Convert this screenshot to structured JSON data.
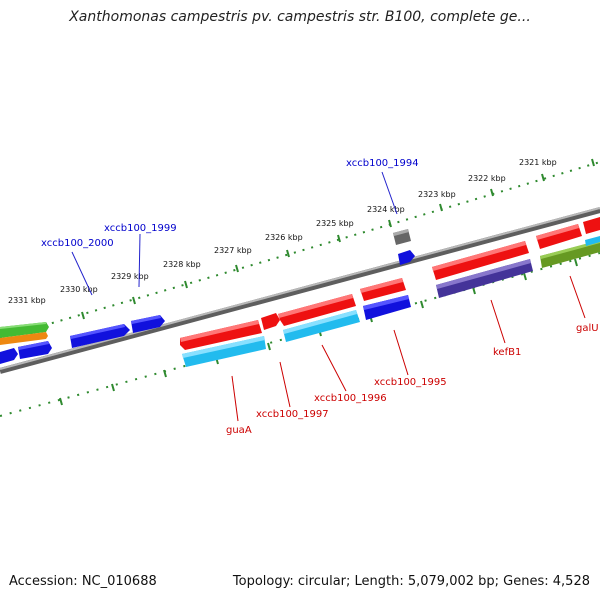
{
  "title": "Xanthomonas campestris pv. campestris str. B100, complete ge...",
  "footer": {
    "accession": "Accession: NC_010688",
    "summary": "Topology: circular; Length: 5,079,002 bp; Genes: 4,528"
  },
  "scale_labels": [
    "2331 kbp",
    "2330 kbp",
    "2329 kbp",
    "2328 kbp",
    "2327 kbp",
    "2326 kbp",
    "2325 kbp",
    "2324 kbp",
    "2323 kbp",
    "2322 kbp",
    "2321 kbp"
  ],
  "gene_labels": {
    "xccb100_2000": "xccb100_2000",
    "xccb100_1999": "xccb100_1999",
    "xccb100_1994": "xccb100_1994",
    "guaA": "guaA",
    "xccb100_1997": "xccb100_1997",
    "xccb100_1996": "xccb100_1996",
    "xccb100_1995": "xccb100_1995",
    "kefB1": "kefB1",
    "galU": "galU"
  },
  "colors": {
    "red": "#ee1111",
    "blue": "#1111dd",
    "cyan": "#22bbee",
    "navy": "#443399",
    "olive": "#669922",
    "green": "#44bb33",
    "orange": "#ee8811",
    "gray": "#666666",
    "backbone": "#888888",
    "ticks": "#338833"
  }
}
